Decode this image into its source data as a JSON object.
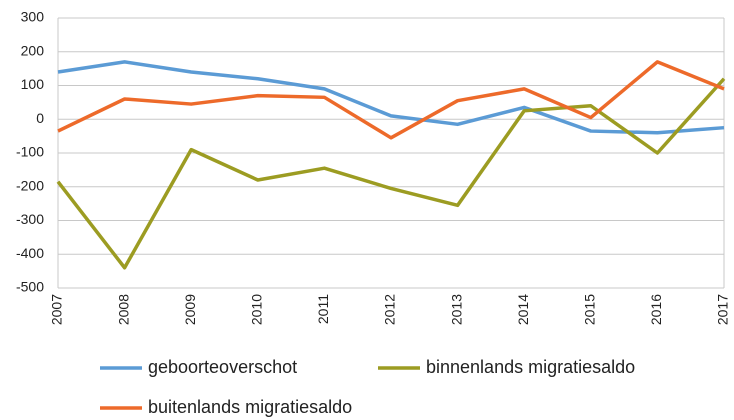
{
  "chart_data": {
    "type": "line",
    "x": [
      2007,
      2008,
      2009,
      2010,
      2011,
      2012,
      2013,
      2014,
      2015,
      2016,
      2017
    ],
    "xlim": [
      2007,
      2017
    ],
    "xticks": [
      2007,
      2008,
      2009,
      2010,
      2011,
      2012,
      2013,
      2014,
      2015,
      2016,
      2017
    ],
    "ylim": [
      -500,
      300
    ],
    "yticks": [
      -500,
      -400,
      -300,
      -200,
      -100,
      0,
      100,
      200,
      300
    ],
    "grid": true,
    "legend": "bottom",
    "series": [
      {
        "name": "geboorteoverschot",
        "color": "#5b9bd5",
        "values": [
          140,
          170,
          140,
          120,
          90,
          10,
          -15,
          35,
          -35,
          -40,
          -25
        ]
      },
      {
        "name": "binnenlands migratiesaldo",
        "color": "#9c9c22",
        "values": [
          -185,
          -440,
          -90,
          -180,
          -145,
          -205,
          -255,
          25,
          40,
          -100,
          120
        ]
      },
      {
        "name": "buitenlands migratiesaldo",
        "color": "#ed6a2a",
        "values": [
          -35,
          60,
          45,
          70,
          65,
          -55,
          55,
          90,
          5,
          170,
          90
        ]
      }
    ]
  }
}
